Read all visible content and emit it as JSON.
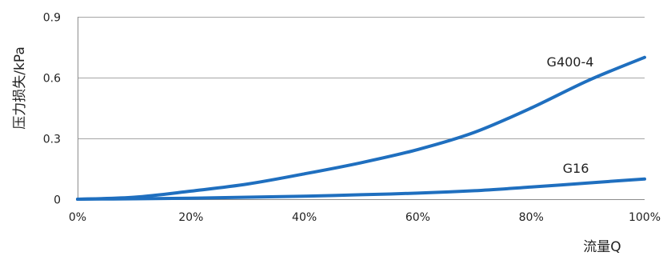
{
  "chart_data": {
    "type": "line",
    "title": "",
    "xlabel": "流量Q",
    "ylabel": "压力损失/kPa",
    "xlim": [
      0,
      100
    ],
    "ylim": [
      0,
      0.9
    ],
    "x_ticks": [
      0,
      20,
      40,
      60,
      80,
      100
    ],
    "x_tick_labels": [
      "0%",
      "20%",
      "40%",
      "60%",
      "80%",
      "100%"
    ],
    "y_ticks": [
      0,
      0.3,
      0.6,
      0.9
    ],
    "y_tick_labels": [
      "0",
      "0.3",
      "0.6",
      "0.9"
    ],
    "grid": "horizontal",
    "legend": "none",
    "line_color": "#1f6fbf",
    "series": [
      {
        "name": "G400-4",
        "x": [
          0,
          10,
          20,
          30,
          40,
          50,
          60,
          70,
          80,
          90,
          100
        ],
        "y": [
          0,
          0.01,
          0.04,
          0.075,
          0.125,
          0.18,
          0.245,
          0.33,
          0.45,
          0.585,
          0.7
        ]
      },
      {
        "name": "G16",
        "x": [
          0,
          10,
          20,
          30,
          40,
          50,
          60,
          70,
          80,
          90,
          100
        ],
        "y": [
          0,
          0.002,
          0.005,
          0.01,
          0.015,
          0.022,
          0.03,
          0.042,
          0.06,
          0.08,
          0.1
        ]
      }
    ]
  }
}
